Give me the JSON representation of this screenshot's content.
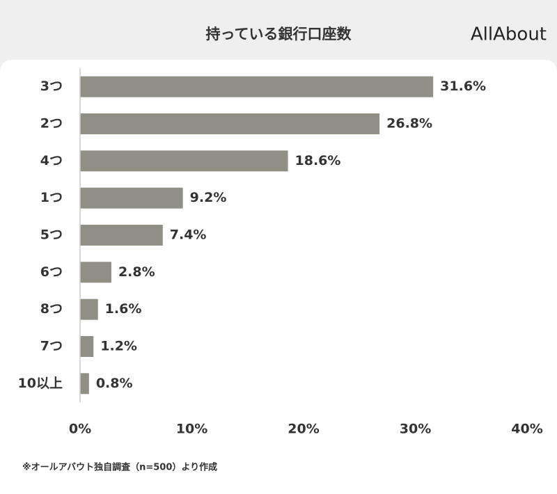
{
  "chart_data": {
    "type": "hbar",
    "title": "持っている銀行口座数",
    "brand": "AllAbout",
    "categories": [
      "3つ",
      "2つ",
      "4つ",
      "1つ",
      "5つ",
      "6つ",
      "8つ",
      "7つ",
      "10以上"
    ],
    "values": [
      31.6,
      26.8,
      18.6,
      9.2,
      7.4,
      2.8,
      1.6,
      1.2,
      0.8
    ],
    "value_labels": [
      "31.6%",
      "26.8%",
      "18.6%",
      "9.2%",
      "7.4%",
      "2.8%",
      "1.6%",
      "1.2%",
      "0.8%"
    ],
    "color": "#8f8f86",
    "xlim": [
      0,
      40
    ],
    "xticks": [
      {
        "value": 0,
        "label": "0%"
      },
      {
        "value": 10,
        "label": "10%"
      },
      {
        "value": 20,
        "label": "20%"
      },
      {
        "value": 30,
        "label": "30%"
      },
      {
        "value": 40,
        "label": "40%"
      }
    ],
    "note": "※オールアバウト独自調査（n=500）より作成"
  }
}
